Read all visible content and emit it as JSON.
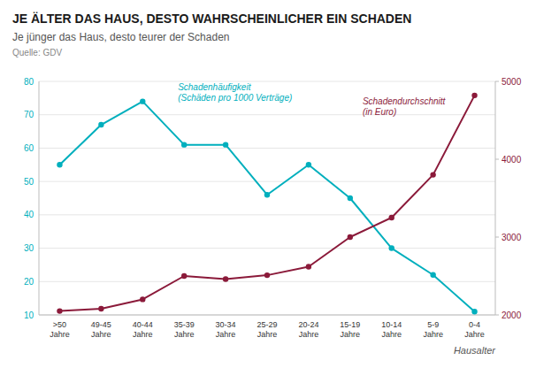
{
  "chart_data": {
    "type": "line",
    "title": "JE ÄLTER DAS HAUS, DESTO WAHRSCHEINLICHER EIN SCHADEN",
    "subtitle": "Je jünger das Haus, desto teurer der Schaden",
    "source": "Quelle: GDV",
    "x_label": "Hausalter",
    "categories": [
      ">50\nJahre",
      "49-45\nJahre",
      "40-44\nJahre",
      "35-39\nJahre",
      "30-34\nJahre",
      "25-29\nJahre",
      "20-24\nJahre",
      "15-19\nJahre",
      "10-14\nJahre",
      "5-9\nJahre",
      "0-4\nJahre"
    ],
    "series": [
      {
        "name": "Schadenhäufigkeit\n(Schäden pro 1000 Verträge)",
        "color": "#00AFBD",
        "values": [
          55,
          67,
          74,
          61,
          61,
          46,
          55,
          45,
          30,
          22,
          11
        ]
      },
      {
        "name": "Schadendurchschnitt\n(in Euro)",
        "color": "#8B1A3A",
        "axis": "y2",
        "values": [
          2050,
          2080,
          2200,
          2500,
          2460,
          2510,
          2620,
          3000,
          3250,
          3800,
          4820
        ]
      }
    ],
    "ylim": [
      10,
      80
    ],
    "yticks": [
      10,
      20,
      30,
      40,
      50,
      60,
      70,
      80
    ],
    "y2lim": [
      2000,
      5000
    ],
    "y2ticks": [
      2000,
      3000,
      4000,
      5000
    ],
    "grid": true,
    "marker": "circle"
  }
}
